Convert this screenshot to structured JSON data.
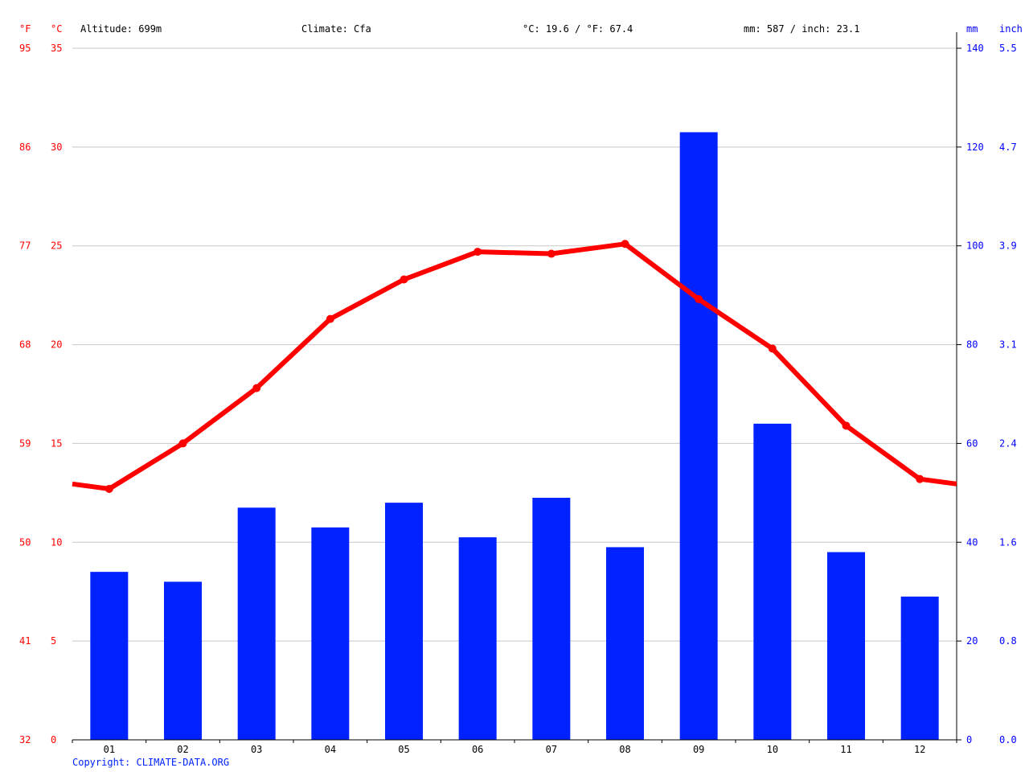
{
  "header": {
    "unit_f": "°F",
    "unit_c": "°C",
    "unit_mm": "mm",
    "unit_inch": "inch",
    "altitude": "Altitude: 699m",
    "climate": "Climate: Cfa",
    "temp_avg": "°C: 19.6 / °F: 67.4",
    "precip_total": "mm: 587 / inch: 23.1"
  },
  "footer": {
    "copyright": "Copyright: CLIMATE-DATA.ORG"
  },
  "colors": {
    "temperature": "#ff0000",
    "precipitation": "#0022ff",
    "grid": "#c8c8c8"
  },
  "chart_data": {
    "type": "bar",
    "categories": [
      "01",
      "02",
      "03",
      "04",
      "05",
      "06",
      "07",
      "08",
      "09",
      "10",
      "11",
      "12"
    ],
    "series": [
      {
        "type": "bar",
        "axis": "right",
        "values": [
          34,
          32,
          47,
          43,
          48,
          41,
          49,
          39,
          123,
          64,
          38,
          29
        ]
      },
      {
        "type": "line",
        "axis": "left",
        "values": [
          12.7,
          15.0,
          17.8,
          21.3,
          23.3,
          24.7,
          24.6,
          25.1,
          22.3,
          19.8,
          15.9,
          13.2
        ]
      }
    ],
    "left_axis_c": {
      "ticks": [
        "0",
        "5",
        "10",
        "15",
        "20",
        "25",
        "30",
        "35"
      ],
      "range": [
        0,
        35
      ]
    },
    "left_axis_f": {
      "ticks": [
        "32",
        "41",
        "50",
        "59",
        "68",
        "77",
        "86",
        "95"
      ]
    },
    "right_axis_mm": {
      "ticks": [
        "0",
        "20",
        "40",
        "60",
        "80",
        "100",
        "120",
        "140"
      ],
      "range": [
        0,
        140
      ]
    },
    "right_axis_inch": {
      "ticks": [
        "0.0",
        "0.8",
        "1.6",
        "2.4",
        "3.1",
        "3.9",
        "4.7",
        "5.5"
      ]
    },
    "grid": true,
    "legend": "none"
  }
}
